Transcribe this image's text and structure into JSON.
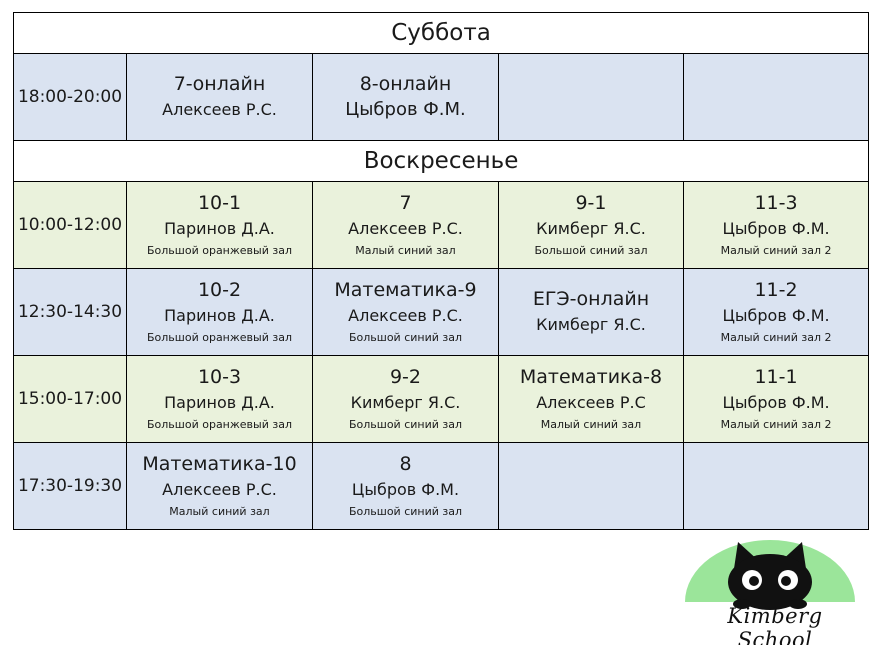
{
  "colors": {
    "row_blue": "#dae3f1",
    "row_green": "#eaf2dc",
    "logo_green": "#9be59a"
  },
  "saturday": {
    "title": "Суббота",
    "rows": [
      {
        "time": "18:00-20:00",
        "cells": [
          {
            "group": "7-онлайн",
            "teacher": "Алексеев Р.С.",
            "room": ""
          },
          {
            "group": "8-онлайн",
            "teacher": "Цыбров Ф.М.",
            "room": ""
          },
          {
            "group": "",
            "teacher": "",
            "room": ""
          },
          {
            "group": "",
            "teacher": "",
            "room": ""
          }
        ]
      }
    ]
  },
  "sunday": {
    "title": "Воскресенье",
    "rows": [
      {
        "time": "10:00-12:00",
        "cells": [
          {
            "group": "10-1",
            "teacher": "Паринов Д.А.",
            "room": "Большой оранжевый зал"
          },
          {
            "group": "7",
            "teacher": "Алексеев Р.С.",
            "room": "Малый синий зал"
          },
          {
            "group": "9-1",
            "teacher": "Кимберг Я.С.",
            "room": "Большой синий зал"
          },
          {
            "group": "11-3",
            "teacher": "Цыбров Ф.М.",
            "room": "Малый синий зал 2"
          }
        ]
      },
      {
        "time": "12:30-14:30",
        "cells": [
          {
            "group": "10-2",
            "teacher": "Паринов Д.А.",
            "room": "Большой оранжевый зал"
          },
          {
            "group": "Математика-9",
            "teacher": "Алексеев Р.С.",
            "room": "Большой синий зал"
          },
          {
            "group": "ЕГЭ-онлайн",
            "teacher": "Кимберг Я.С.",
            "room": ""
          },
          {
            "group": "11-2",
            "teacher": "Цыбров Ф.М.",
            "room": "Малый синий зал 2"
          }
        ]
      },
      {
        "time": "15:00-17:00",
        "cells": [
          {
            "group": "10-3",
            "teacher": "Паринов Д.А.",
            "room": "Большой оранжевый зал"
          },
          {
            "group": "9-2",
            "teacher": "Кимберг Я.С.",
            "room": "Большой синий зал"
          },
          {
            "group": "Математика-8",
            "teacher": "Алексеев Р.С",
            "room": "Малый синий зал"
          },
          {
            "group": "11-1",
            "teacher": "Цыбров Ф.М.",
            "room": "Малый синий зал 2"
          }
        ]
      },
      {
        "time": "17:30-19:30",
        "cells": [
          {
            "group": "Математика-10",
            "teacher": "Алексеев Р.С.",
            "room": "Малый синий зал"
          },
          {
            "group": "8",
            "teacher": "Цыбров Ф.М.",
            "room": "Большой синий зал"
          },
          {
            "group": "",
            "teacher": "",
            "room": ""
          },
          {
            "group": "",
            "teacher": "",
            "room": ""
          }
        ]
      }
    ]
  },
  "logo": {
    "text": "Kimberg School",
    "icon": "black-cat-icon"
  }
}
